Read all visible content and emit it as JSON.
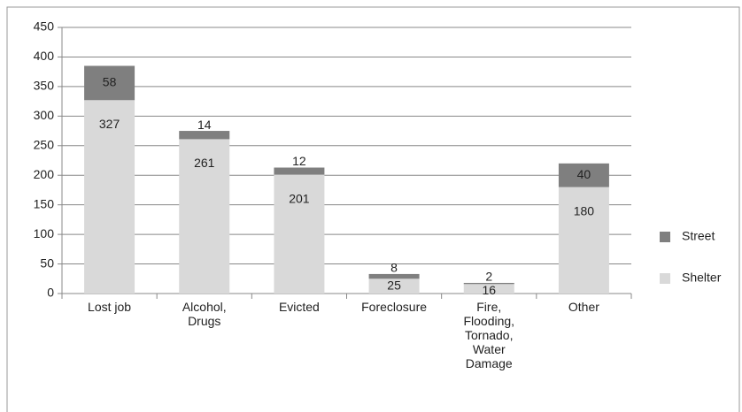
{
  "chart_data": {
    "type": "stacked_bar",
    "categories": [
      "Lost job",
      "Alcohol,\nDrugs",
      "Evicted",
      "Foreclosure",
      "Fire,\nFlooding,\nTornado,\nWater\nDamage",
      "Other"
    ],
    "series": [
      {
        "name": "Shelter",
        "color": "#d9d9d9",
        "values": [
          327,
          261,
          201,
          25,
          16,
          180
        ]
      },
      {
        "name": "Street",
        "color": "#7f7f7f",
        "values": [
          58,
          14,
          12,
          8,
          2,
          40
        ]
      }
    ],
    "ylim": [
      0,
      450
    ],
    "yticks": [
      0,
      50,
      100,
      150,
      200,
      250,
      300,
      350,
      400,
      450
    ],
    "grid": true,
    "legend": "right"
  }
}
